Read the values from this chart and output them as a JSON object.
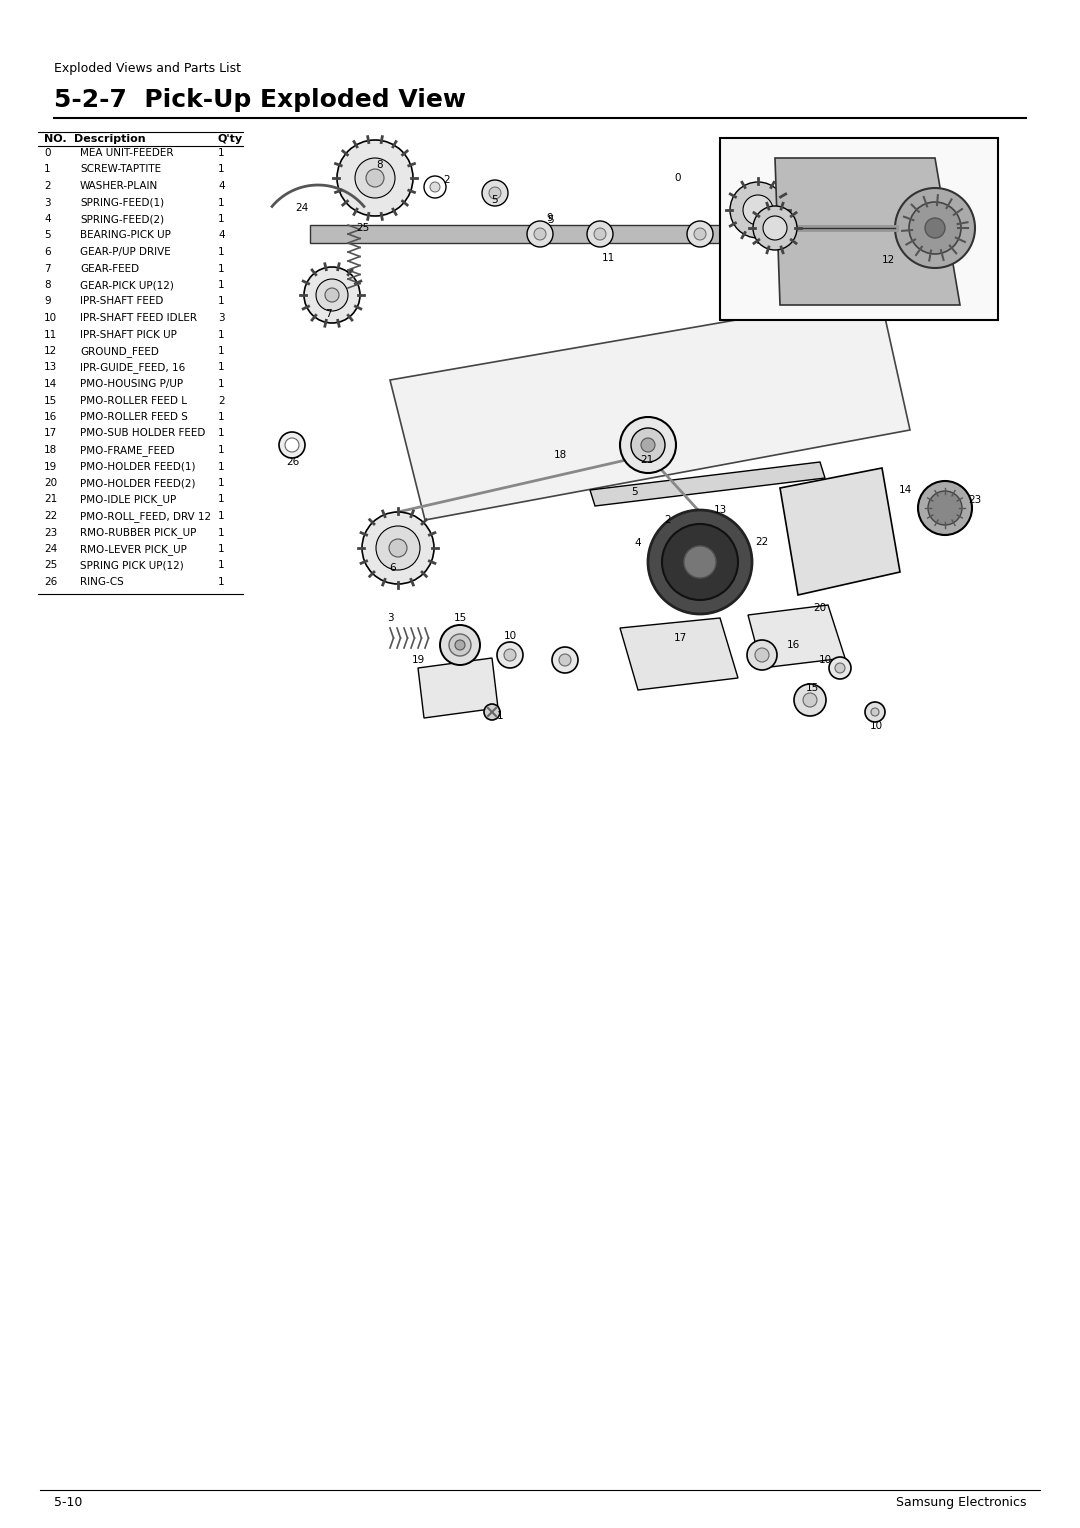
{
  "page_title": "Exploded Views and Parts List",
  "section_title": "5-2-7  Pick-Up Exploded View",
  "footer_left": "5-10",
  "footer_right": "Samsung Electronics",
  "table_headers": [
    "NO.",
    "Description",
    "Q'ty"
  ],
  "parts": [
    {
      "no": "0",
      "desc": "MEA UNIT-FEEDER",
      "qty": "1"
    },
    {
      "no": "1",
      "desc": "SCREW-TAPTITE",
      "qty": "1"
    },
    {
      "no": "2",
      "desc": "WASHER-PLAIN",
      "qty": "4"
    },
    {
      "no": "3",
      "desc": "SPRING-FEED(1)",
      "qty": "1"
    },
    {
      "no": "4",
      "desc": "SPRING-FEED(2)",
      "qty": "1"
    },
    {
      "no": "5",
      "desc": "BEARING-PICK UP",
      "qty": "4"
    },
    {
      "no": "6",
      "desc": "GEAR-P/UP DRIVE",
      "qty": "1"
    },
    {
      "no": "7",
      "desc": "GEAR-FEED",
      "qty": "1"
    },
    {
      "no": "8",
      "desc": "GEAR-PICK UP(12)",
      "qty": "1"
    },
    {
      "no": "9",
      "desc": "IPR-SHAFT FEED",
      "qty": "1"
    },
    {
      "no": "10",
      "desc": "IPR-SHAFT FEED IDLER",
      "qty": "3"
    },
    {
      "no": "11",
      "desc": "IPR-SHAFT PICK UP",
      "qty": "1"
    },
    {
      "no": "12",
      "desc": "GROUND_FEED",
      "qty": "1"
    },
    {
      "no": "13",
      "desc": "IPR-GUIDE_FEED, 16",
      "qty": "1"
    },
    {
      "no": "14",
      "desc": "PMO-HOUSING P/UP",
      "qty": "1"
    },
    {
      "no": "15",
      "desc": "PMO-ROLLER FEED L",
      "qty": "2"
    },
    {
      "no": "16",
      "desc": "PMO-ROLLER FEED S",
      "qty": "1"
    },
    {
      "no": "17",
      "desc": "PMO-SUB HOLDER FEED",
      "qty": "1"
    },
    {
      "no": "18",
      "desc": "PMO-FRAME_FEED",
      "qty": "1"
    },
    {
      "no": "19",
      "desc": "PMO-HOLDER FEED(1)",
      "qty": "1"
    },
    {
      "no": "20",
      "desc": "PMO-HOLDER FEED(2)",
      "qty": "1"
    },
    {
      "no": "21",
      "desc": "PMO-IDLE PICK_UP",
      "qty": "1"
    },
    {
      "no": "22",
      "desc": "PMO-ROLL_FEED, DRV 12",
      "qty": "1"
    },
    {
      "no": "23",
      "desc": "RMO-RUBBER PICK_UP",
      "qty": "1"
    },
    {
      "no": "24",
      "desc": "RMO-LEVER PICK_UP",
      "qty": "1"
    },
    {
      "no": "25",
      "desc": "SPRING PICK UP(12)",
      "qty": "1"
    },
    {
      "no": "26",
      "desc": "RING-CS",
      "qty": "1"
    }
  ],
  "bg_color": "#ffffff",
  "text_color": "#000000",
  "line_color": "#000000",
  "title_fontsize": 18,
  "table_header_size": 8,
  "table_body_size": 7.5,
  "footer_size": 9
}
